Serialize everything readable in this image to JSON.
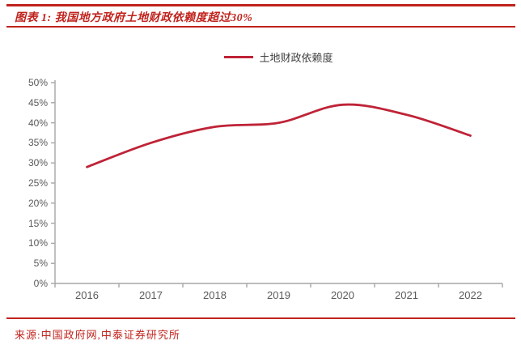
{
  "header": {
    "title": "图表 1: 我国地方政府土地财政依赖度超过30%"
  },
  "footer": {
    "source": "来源:中国政府网,中泰证券研究所"
  },
  "colors": {
    "accent_red": "#c0231d",
    "series_red": "#bf2337",
    "axis_gray": "#a6a6a6",
    "tick_label_gray": "#595959",
    "legend_text_gray": "#404040"
  },
  "chart_data": {
    "type": "line",
    "title": "图表 1: 我国地方政府土地财政依赖度超过30%",
    "categories": [
      "2016",
      "2017",
      "2018",
      "2019",
      "2020",
      "2021",
      "2022"
    ],
    "series": [
      {
        "name": "土地财政依赖度",
        "values": [
          29,
          35,
          39,
          40,
          44.5,
          42,
          36.8
        ]
      }
    ],
    "xlabel": "",
    "ylabel": "",
    "ylim": [
      0,
      50
    ],
    "ytick_step": 5,
    "ytick_labels": [
      "0%",
      "5%",
      "10%",
      "15%",
      "20%",
      "25%",
      "30%",
      "35%",
      "40%",
      "45%",
      "50%"
    ],
    "grid": false,
    "smooth": true,
    "legend_position": "top-center"
  }
}
